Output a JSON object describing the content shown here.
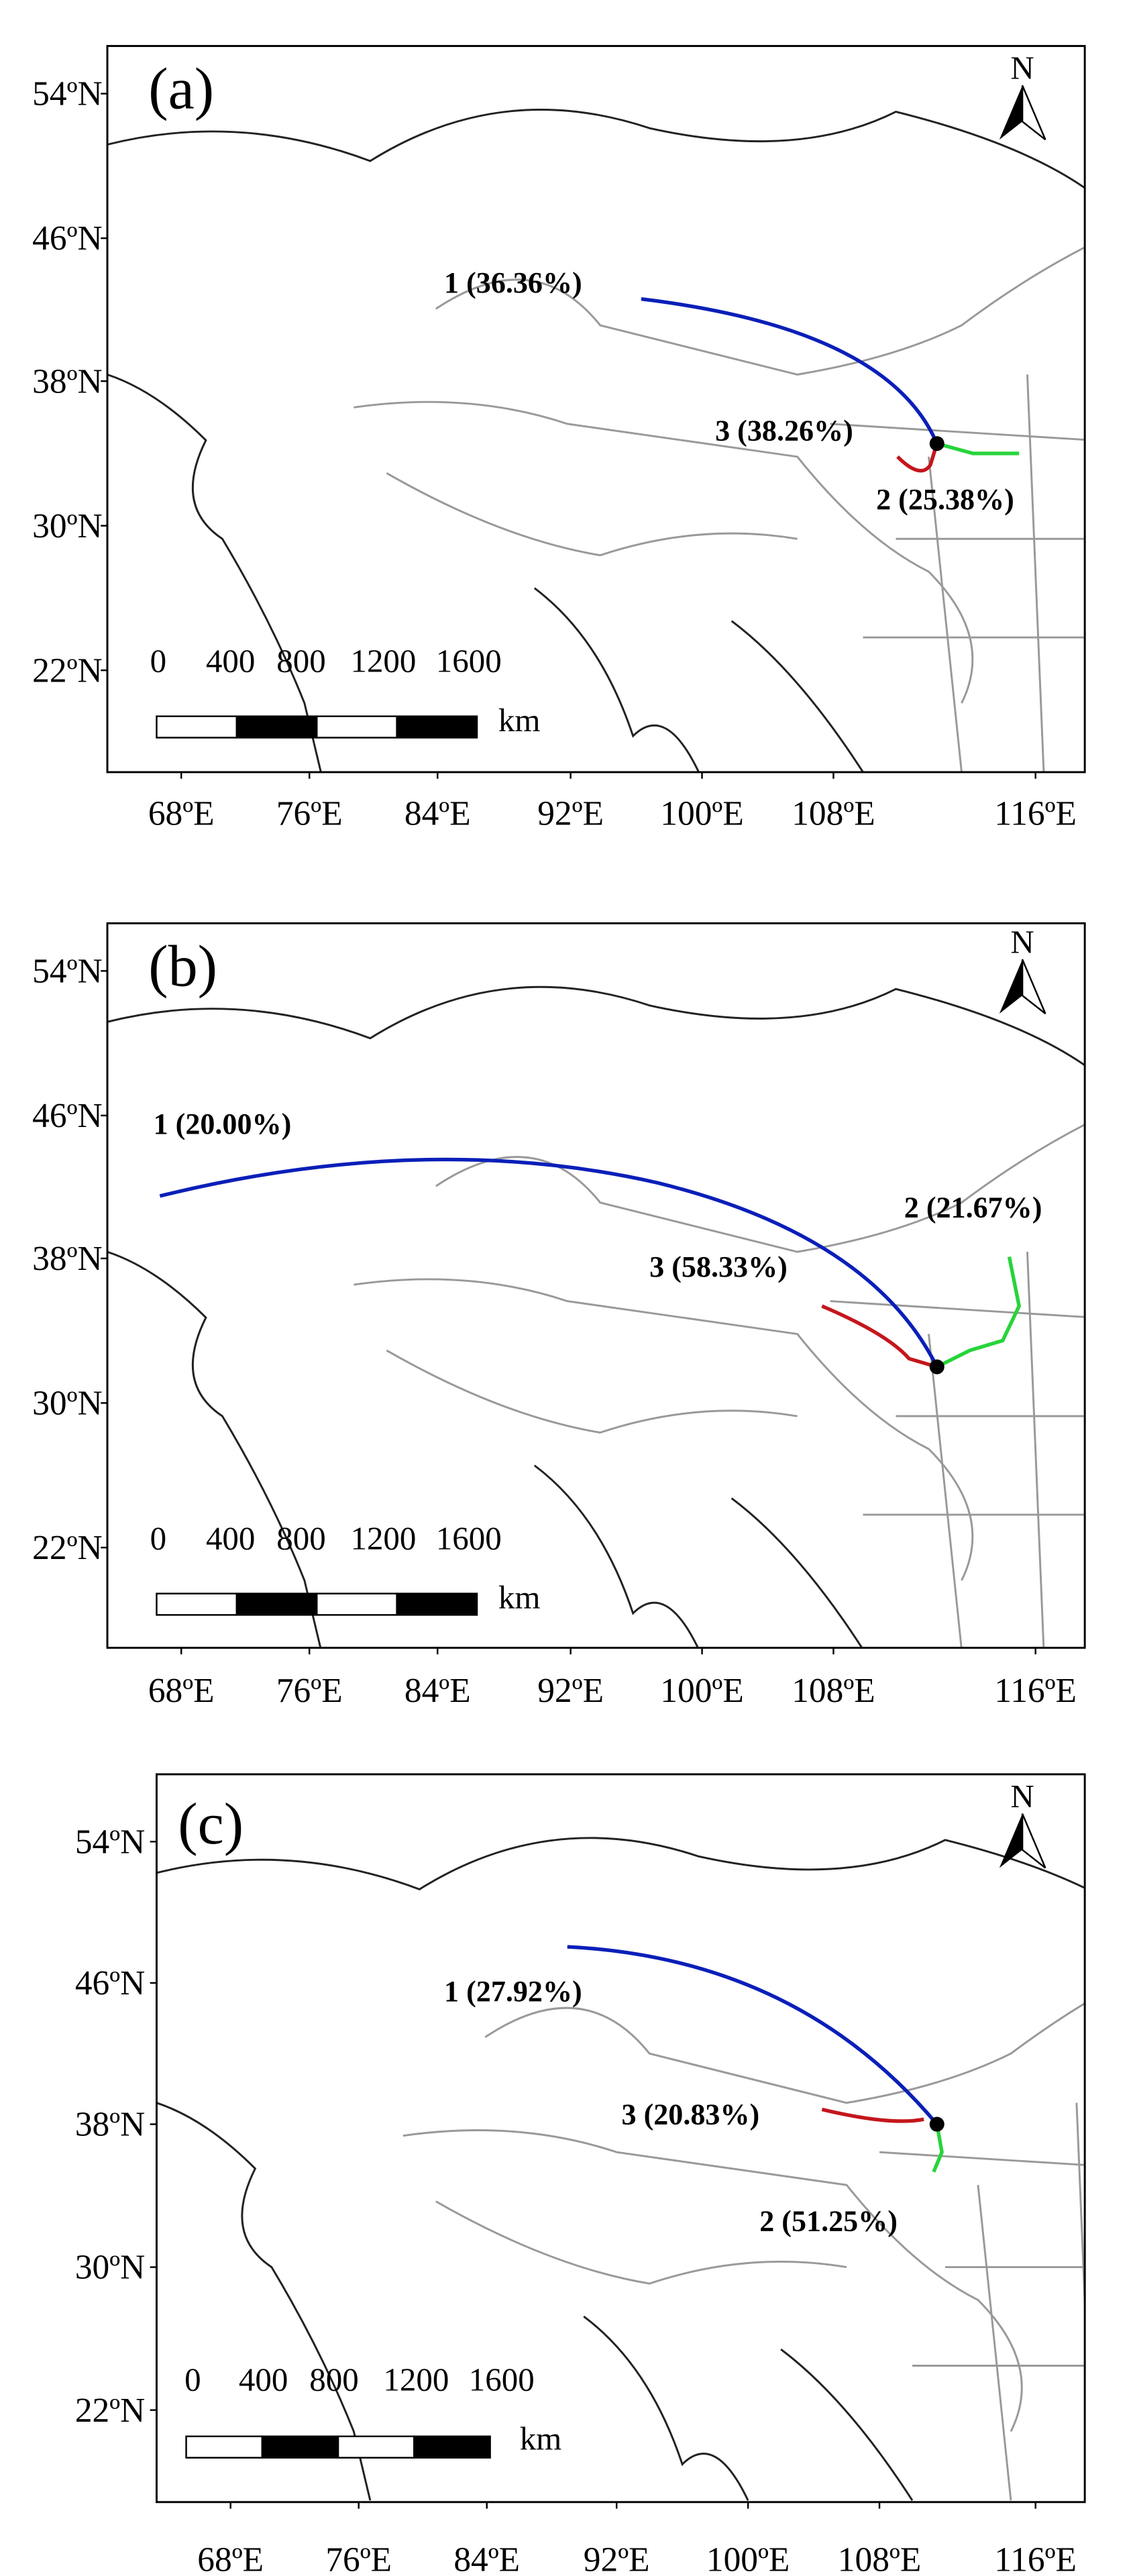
{
  "panels": [
    {
      "label": "(a)",
      "north": "N",
      "yticks": [
        "54ºN",
        "46ºN",
        "38ºN",
        "30ºN",
        "22ºN"
      ],
      "xticks": [
        "68ºE",
        "76ºE",
        "84ºE",
        "92ºE",
        "100ºE",
        "108ºE",
        "116ºE"
      ],
      "clusters": [
        {
          "label": "1 (36.36%)"
        },
        {
          "label": "2 (25.38%)"
        },
        {
          "label": "3 (38.26%)"
        }
      ],
      "scale": [
        "0",
        "400",
        "800",
        "1200",
        "1600"
      ],
      "scale_unit": "km"
    },
    {
      "label": "(b)",
      "north": "N",
      "yticks": [
        "54ºN",
        "46ºN",
        "38ºN",
        "30ºN",
        "22ºN"
      ],
      "xticks": [
        "68ºE",
        "76ºE",
        "84ºE",
        "92ºE",
        "100ºE",
        "108ºE",
        "116ºE"
      ],
      "clusters": [
        {
          "label": "1 (20.00%)"
        },
        {
          "label": "2 (21.67%)"
        },
        {
          "label": "3 (58.33%)"
        }
      ],
      "scale": [
        "0",
        "400",
        "800",
        "1200",
        "1600"
      ],
      "scale_unit": "km"
    },
    {
      "label": "(c)",
      "north": "N",
      "yticks": [
        "54ºN",
        "46ºN",
        "38ºN",
        "30ºN",
        "22ºN"
      ],
      "xticks": [
        "68ºE",
        "76ºE",
        "84ºE",
        "92ºE",
        "100ºE",
        "108ºE",
        "116ºE"
      ],
      "clusters": [
        {
          "label": "1 (27.92%)"
        },
        {
          "label": "2 (51.25%)"
        },
        {
          "label": "3 (20.83%)"
        }
      ],
      "scale": [
        "0",
        "400",
        "800",
        "1200",
        "1600"
      ],
      "scale_unit": "km"
    }
  ]
}
